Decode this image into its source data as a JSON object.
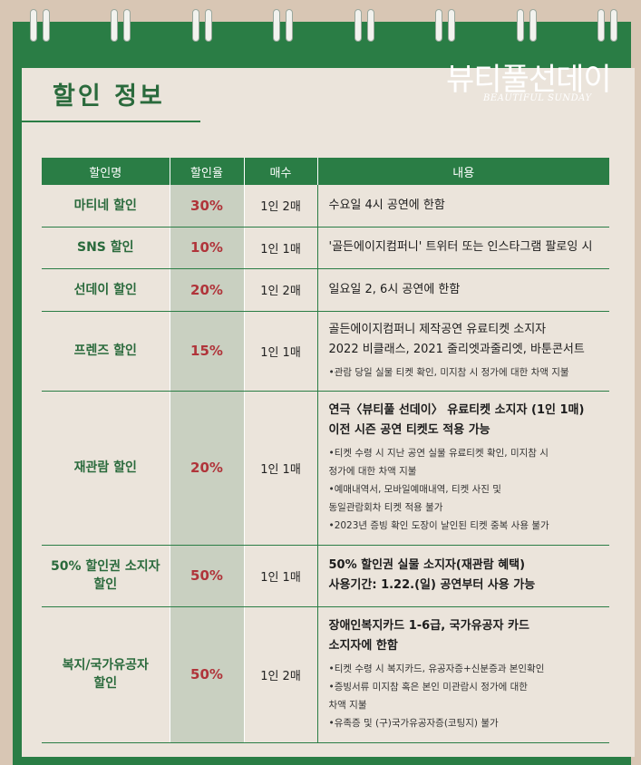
{
  "header": {
    "title": "할인 정보",
    "brand": "뷰티풀선데이",
    "brand_sub": "BEAUTIFUL SUNDAY"
  },
  "colors": {
    "green": "#2a7d45",
    "rate_red": "#b0343a",
    "rate_bg": "#c9d0c1",
    "paper": "#ebe4db"
  },
  "table": {
    "headers": [
      "할인명",
      "할인율",
      "매수",
      "내용"
    ],
    "rows": [
      {
        "name": "마티네 할인",
        "rate": "30%",
        "qty": "1인 2매",
        "lines": [
          "수요일 4시 공연에 한함"
        ],
        "notes": []
      },
      {
        "name": "SNS 할인",
        "rate": "10%",
        "qty": "1인 1매",
        "lines": [
          "'골든에이지컴퍼니' 트위터 또는 인스타그램 팔로잉 시"
        ],
        "notes": []
      },
      {
        "name": "선데이 할인",
        "rate": "20%",
        "qty": "1인 2매",
        "lines": [
          "일요일 2, 6시 공연에 한함"
        ],
        "notes": []
      },
      {
        "name": "프렌즈 할인",
        "rate": "15%",
        "qty": "1인 1매",
        "lines": [
          "골든에이지컴퍼니 제작공연 유료티켓 소지자",
          "2022 비클래스, 2021 줄리엣과줄리엣, 바툰콘서트"
        ],
        "notes": [
          "•관람 당일 실물 티켓 확인, 미지참 시 정가에 대한 차액 지불"
        ]
      },
      {
        "name": "재관람 할인",
        "rate": "20%",
        "qty": "1인 1매",
        "lines": [
          "연극〈뷰티풀 선데이〉 유료티켓 소지자 (1인 1매)",
          "이전 시즌 공연 티켓도 적용 가능"
        ],
        "notes": [
          "•티켓 수령 시 지난 공연 실물 유료티켓 확인, 미지참 시",
          "정가에 대한 차액 지불",
          "•예매내역서, 모바일예매내역, 티켓 사진 및",
          "동일관람회차 티켓 적용 불가",
          "•2023년 증빙 확인 도장이 날인된 티켓 중복 사용 불가"
        ]
      },
      {
        "name_lines": [
          "50% 할인권 소지자",
          "할인"
        ],
        "rate": "50%",
        "qty": "1인 1매",
        "lines": [
          "50% 할인권 실물 소지자(재관람 혜택)",
          "사용기간: 1.22.(일) 공연부터 사용 가능"
        ],
        "notes": []
      },
      {
        "name_lines": [
          "복지/국가유공자",
          "할인"
        ],
        "rate": "50%",
        "qty": "1인 2매",
        "lines": [
          "장애인복지카드 1-6급, 국가유공자 카드",
          "소지자에 한함"
        ],
        "notes": [
          "•티켓 수령 시 복지카드, 유공자증+신분증과 본인확인",
          "•증빙서류 미지참 혹은 본인 미관람시 정가에 대한",
          "차액 지불",
          "•유족증 및 (구)국가유공자증(코팅지) 불가"
        ]
      }
    ]
  }
}
